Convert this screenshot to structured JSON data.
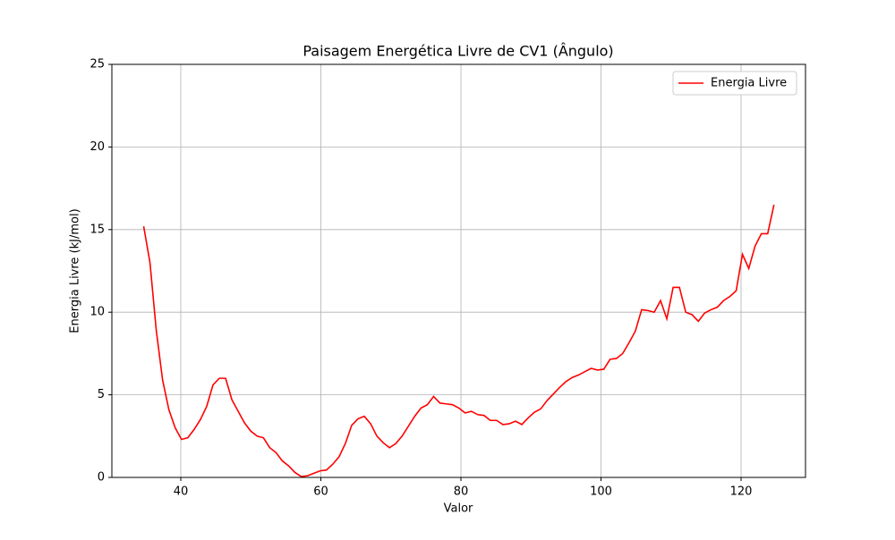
{
  "chart_data": {
    "type": "line",
    "title": "Paisagem Energética Livre de CV1 (Ângulo)",
    "x_label": "Valor",
    "y_label": "Energia Livre (kJ/mol)",
    "x": [
      34.7,
      35.6,
      36.5,
      37.4,
      38.3,
      39.2,
      40.1,
      41.0,
      41.9,
      42.8,
      43.7,
      44.6,
      45.5,
      46.4,
      47.3,
      48.2,
      49.1,
      50.0,
      50.9,
      51.8,
      52.7,
      53.6,
      54.5,
      55.4,
      56.3,
      57.2,
      58.1,
      59.0,
      59.9,
      60.8,
      61.7,
      62.6,
      63.5,
      64.4,
      65.3,
      66.2,
      67.1,
      68.0,
      68.9,
      69.8,
      70.7,
      71.6,
      72.5,
      73.4,
      74.3,
      75.2,
      76.1,
      77.0,
      77.9,
      78.8,
      79.7,
      80.6,
      81.5,
      82.4,
      83.3,
      84.2,
      85.1,
      86.0,
      86.9,
      87.8,
      88.7,
      89.6,
      90.5,
      91.4,
      92.3,
      93.2,
      94.1,
      95.0,
      95.9,
      96.8,
      97.7,
      98.6,
      99.5,
      100.4,
      101.3,
      102.2,
      103.1,
      104.0,
      104.9,
      105.8,
      106.7,
      107.6,
      108.5,
      109.4,
      110.3,
      111.2,
      112.1,
      113.0,
      113.9,
      114.8,
      115.7,
      116.6,
      117.5,
      118.4,
      119.3,
      120.2,
      121.1,
      122.0,
      122.9,
      123.8,
      124.7
    ],
    "series": [
      {
        "name": "Energia Livre",
        "color": "#ff0000",
        "values": [
          15.2,
          13.0,
          8.9,
          5.9,
          4.1,
          3.0,
          2.3,
          2.4,
          2.9,
          3.5,
          4.3,
          5.6,
          6.0,
          6.0,
          4.7,
          4.0,
          3.3,
          2.8,
          2.5,
          2.4,
          1.8,
          1.5,
          1.0,
          0.7,
          0.3,
          0.05,
          0.1,
          0.25,
          0.4,
          0.45,
          0.8,
          1.25,
          2.05,
          3.15,
          3.55,
          3.7,
          3.25,
          2.5,
          2.1,
          1.8,
          2.05,
          2.5,
          3.1,
          3.7,
          4.2,
          4.4,
          4.9,
          4.5,
          4.45,
          4.4,
          4.2,
          3.9,
          4.0,
          3.8,
          3.75,
          3.45,
          3.45,
          3.2,
          3.25,
          3.4,
          3.2,
          3.6,
          3.95,
          4.15,
          4.65,
          5.05,
          5.45,
          5.8,
          6.05,
          6.2,
          6.4,
          6.6,
          6.5,
          6.55,
          7.15,
          7.2,
          7.5,
          8.15,
          8.85,
          10.15,
          10.1,
          10.0,
          10.7,
          9.6,
          11.5,
          11.5,
          10.0,
          9.85,
          9.45,
          9.95,
          10.15,
          10.3,
          10.7,
          10.95,
          11.3,
          13.5,
          12.65,
          14.0,
          14.75,
          14.75,
          16.5
        ]
      }
    ],
    "xlim": [
      30.16,
      129.2
    ],
    "xticks": [
      40,
      60,
      80,
      100,
      120
    ],
    "ylim": [
      0,
      25
    ],
    "yticks": [
      0,
      5,
      10,
      15,
      20,
      25
    ],
    "grid": true,
    "legend": "upper right"
  }
}
